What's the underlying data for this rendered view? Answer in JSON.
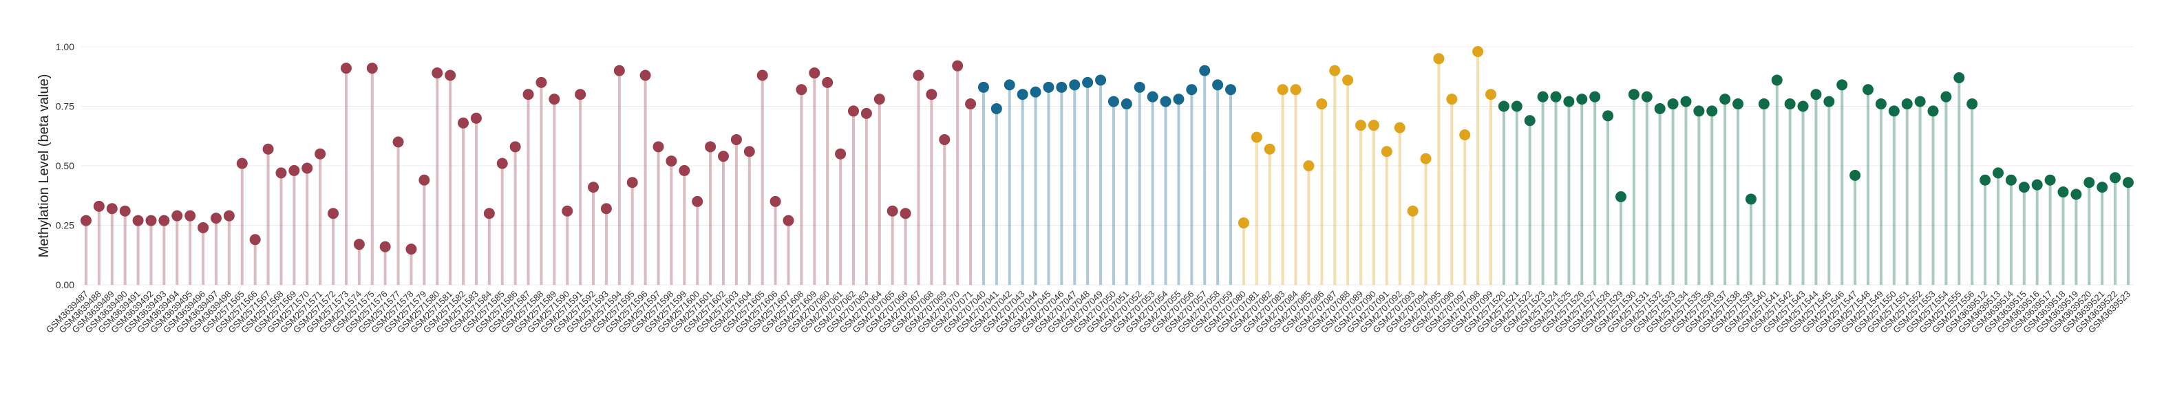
{
  "chart_data": {
    "type": "lollipop",
    "y_label": "Methylation Level (beta value)",
    "ylim": [
      0,
      1
    ],
    "yticks": [
      {
        "value": 0,
        "label": "0.00"
      },
      {
        "value": 0.25,
        "label": "0.25"
      },
      {
        "value": 0.5,
        "label": "0.50"
      },
      {
        "value": 0.75,
        "label": "0.75"
      },
      {
        "value": 1,
        "label": "1.00"
      }
    ],
    "grid": true,
    "categories": [
      "GSM3639487",
      "GSM3639488",
      "GSM3639489",
      "GSM3639490",
      "GSM3639491",
      "GSM3639492",
      "GSM3639493",
      "GSM3639494",
      "GSM3639495",
      "GSM3639496",
      "GSM3639497",
      "GSM3639498",
      "GSM2571565",
      "GSM2571566",
      "GSM2571567",
      "GSM2571568",
      "GSM2571569",
      "GSM2571570",
      "GSM2571571",
      "GSM2571572",
      "GSM2571573",
      "GSM2571574",
      "GSM2571575",
      "GSM2571576",
      "GSM2571577",
      "GSM2571578",
      "GSM2571579",
      "GSM2571580",
      "GSM2571581",
      "GSM2571582",
      "GSM2571583",
      "GSM2571584",
      "GSM2571585",
      "GSM2571586",
      "GSM2571587",
      "GSM2571588",
      "GSM2571589",
      "GSM2571590",
      "GSM2571591",
      "GSM2571592",
      "GSM2571593",
      "GSM2571594",
      "GSM2571595",
      "GSM2571596",
      "GSM2571597",
      "GSM2571598",
      "GSM2571599",
      "GSM2571600",
      "GSM2571601",
      "GSM2571602",
      "GSM2571603",
      "GSM2571604",
      "GSM2571605",
      "GSM2571606",
      "GSM2571607",
      "GSM2571608",
      "GSM2571609",
      "GSM2707060",
      "GSM2707061",
      "GSM2707062",
      "GSM2707063",
      "GSM2707064",
      "GSM2707065",
      "GSM2707066",
      "GSM2707067",
      "GSM2707068",
      "GSM2707069",
      "GSM2707070",
      "GSM2707071",
      "GSM2707040",
      "GSM2707041",
      "GSM2707042",
      "GSM2707043",
      "GSM2707044",
      "GSM2707045",
      "GSM2707046",
      "GSM2707047",
      "GSM2707048",
      "GSM2707049",
      "GSM2707050",
      "GSM2707051",
      "GSM2707052",
      "GSM2707053",
      "GSM2707054",
      "GSM2707055",
      "GSM2707056",
      "GSM2707057",
      "GSM2707058",
      "GSM2707059",
      "GSM2707080",
      "GSM2707081",
      "GSM2707082",
      "GSM2707083",
      "GSM2707084",
      "GSM2707085",
      "GSM2707086",
      "GSM2707087",
      "GSM2707088",
      "GSM2707089",
      "GSM2707090",
      "GSM2707091",
      "GSM2707092",
      "GSM2707093",
      "GSM2707094",
      "GSM2707095",
      "GSM2707096",
      "GSM2707097",
      "GSM2707098",
      "GSM2707099",
      "GSM2571520",
      "GSM2571521",
      "GSM2571522",
      "GSM2571523",
      "GSM2571524",
      "GSM2571525",
      "GSM2571526",
      "GSM2571527",
      "GSM2571528",
      "GSM2571529",
      "GSM2571530",
      "GSM2571531",
      "GSM2571532",
      "GSM2571533",
      "GSM2571534",
      "GSM2571535",
      "GSM2571536",
      "GSM2571537",
      "GSM2571538",
      "GSM2571539",
      "GSM2571540",
      "GSM2571541",
      "GSM2571542",
      "GSM2571543",
      "GSM2571544",
      "GSM2571545",
      "GSM2571546",
      "GSM2571547",
      "GSM2571548",
      "GSM2571549",
      "GSM2571550",
      "GSM2571551",
      "GSM2571552",
      "GSM2571553",
      "GSM2571554",
      "GSM2571555",
      "GSM2571556",
      "GSM3639512",
      "GSM3639513",
      "GSM3639514",
      "GSM3639515",
      "GSM3639516",
      "GSM3639517",
      "GSM3639518",
      "GSM3639519",
      "GSM3639520",
      "GSM3639521",
      "GSM3639522",
      "GSM3639523"
    ],
    "values": [
      0.27,
      0.33,
      0.32,
      0.31,
      0.27,
      0.27,
      0.27,
      0.29,
      0.29,
      0.24,
      0.28,
      0.29,
      0.51,
      0.19,
      0.57,
      0.47,
      0.48,
      0.49,
      0.55,
      0.3,
      0.91,
      0.17,
      0.91,
      0.16,
      0.6,
      0.15,
      0.44,
      0.89,
      0.88,
      0.68,
      0.7,
      0.3,
      0.51,
      0.58,
      0.8,
      0.85,
      0.78,
      0.31,
      0.8,
      0.41,
      0.32,
      0.9,
      0.43,
      0.88,
      0.58,
      0.52,
      0.48,
      0.35,
      0.58,
      0.54,
      0.61,
      0.56,
      0.88,
      0.35,
      0.27,
      0.82,
      0.89,
      0.85,
      0.55,
      0.73,
      0.72,
      0.78,
      0.31,
      0.3,
      0.88,
      0.8,
      0.61,
      0.92,
      0.76,
      0.83,
      0.74,
      0.84,
      0.8,
      0.81,
      0.83,
      0.83,
      0.84,
      0.85,
      0.86,
      0.77,
      0.76,
      0.83,
      0.79,
      0.77,
      0.78,
      0.82,
      0.9,
      0.84,
      0.82,
      0.26,
      0.62,
      0.57,
      0.82,
      0.82,
      0.5,
      0.76,
      0.9,
      0.86,
      0.67,
      0.67,
      0.56,
      0.66,
      0.31,
      0.53,
      0.95,
      0.78,
      0.63,
      0.98,
      0.8,
      0.75,
      0.75,
      0.69,
      0.79,
      0.79,
      0.77,
      0.78,
      0.79,
      0.71,
      0.37,
      0.8,
      0.79,
      0.74,
      0.76,
      0.77,
      0.73,
      0.73,
      0.78,
      0.76,
      0.36,
      0.76,
      0.86,
      0.76,
      0.75,
      0.8,
      0.77,
      0.84,
      0.46,
      0.82,
      0.76,
      0.73,
      0.76,
      0.77,
      0.73,
      0.79,
      0.87,
      0.76,
      0.44,
      0.47,
      0.44,
      0.41,
      0.42,
      0.44,
      0.39,
      0.38,
      0.43,
      0.41,
      0.45,
      0.43
    ],
    "colors": [
      "#9b3e4e",
      "#9b3e4e",
      "#9b3e4e",
      "#9b3e4e",
      "#9b3e4e",
      "#9b3e4e",
      "#9b3e4e",
      "#9b3e4e",
      "#9b3e4e",
      "#9b3e4e",
      "#9b3e4e",
      "#9b3e4e",
      "#9b3e4e",
      "#9b3e4e",
      "#9b3e4e",
      "#9b3e4e",
      "#9b3e4e",
      "#9b3e4e",
      "#9b3e4e",
      "#9b3e4e",
      "#9b3e4e",
      "#9b3e4e",
      "#9b3e4e",
      "#9b3e4e",
      "#9b3e4e",
      "#9b3e4e",
      "#9b3e4e",
      "#9b3e4e",
      "#9b3e4e",
      "#9b3e4e",
      "#9b3e4e",
      "#9b3e4e",
      "#9b3e4e",
      "#9b3e4e",
      "#9b3e4e",
      "#9b3e4e",
      "#9b3e4e",
      "#9b3e4e",
      "#9b3e4e",
      "#9b3e4e",
      "#9b3e4e",
      "#9b3e4e",
      "#9b3e4e",
      "#9b3e4e",
      "#9b3e4e",
      "#9b3e4e",
      "#9b3e4e",
      "#9b3e4e",
      "#9b3e4e",
      "#9b3e4e",
      "#9b3e4e",
      "#9b3e4e",
      "#9b3e4e",
      "#9b3e4e",
      "#9b3e4e",
      "#9b3e4e",
      "#9b3e4e",
      "#9b3e4e",
      "#9b3e4e",
      "#9b3e4e",
      "#9b3e4e",
      "#9b3e4e",
      "#9b3e4e",
      "#9b3e4e",
      "#9b3e4e",
      "#9b3e4e",
      "#9b3e4e",
      "#9b3e4e",
      "#9b3e4e",
      "#16688f",
      "#16688f",
      "#16688f",
      "#16688f",
      "#16688f",
      "#16688f",
      "#16688f",
      "#16688f",
      "#16688f",
      "#16688f",
      "#16688f",
      "#16688f",
      "#16688f",
      "#16688f",
      "#16688f",
      "#16688f",
      "#16688f",
      "#16688f",
      "#16688f",
      "#16688f",
      "#e0a31c",
      "#e0a31c",
      "#e0a31c",
      "#e0a31c",
      "#e0a31c",
      "#e0a31c",
      "#e0a31c",
      "#e0a31c",
      "#e0a31c",
      "#e0a31c",
      "#e0a31c",
      "#e0a31c",
      "#e0a31c",
      "#e0a31c",
      "#e0a31c",
      "#e0a31c",
      "#e0a31c",
      "#e0a31c",
      "#e0a31c",
      "#e0a31c",
      "#0f6b48",
      "#0f6b48",
      "#0f6b48",
      "#0f6b48",
      "#0f6b48",
      "#0f6b48",
      "#0f6b48",
      "#0f6b48",
      "#0f6b48",
      "#0f6b48",
      "#0f6b48",
      "#0f6b48",
      "#0f6b48",
      "#0f6b48",
      "#0f6b48",
      "#0f6b48",
      "#0f6b48",
      "#0f6b48",
      "#0f6b48",
      "#0f6b48",
      "#0f6b48",
      "#0f6b48",
      "#0f6b48",
      "#0f6b48",
      "#0f6b48",
      "#0f6b48",
      "#0f6b48",
      "#0f6b48",
      "#0f6b48",
      "#0f6b48",
      "#0f6b48",
      "#0f6b48",
      "#0f6b48",
      "#0f6b48",
      "#0f6b48",
      "#0f6b48",
      "#0f6b48",
      "#0f6b48",
      "#0f6b48",
      "#0f6b48",
      "#0f6b48",
      "#0f6b48",
      "#0f6b48",
      "#0f6b48",
      "#0f6b48",
      "#0f6b48",
      "#0f6b48",
      "#0f6b48",
      "#0f6b48"
    ]
  }
}
